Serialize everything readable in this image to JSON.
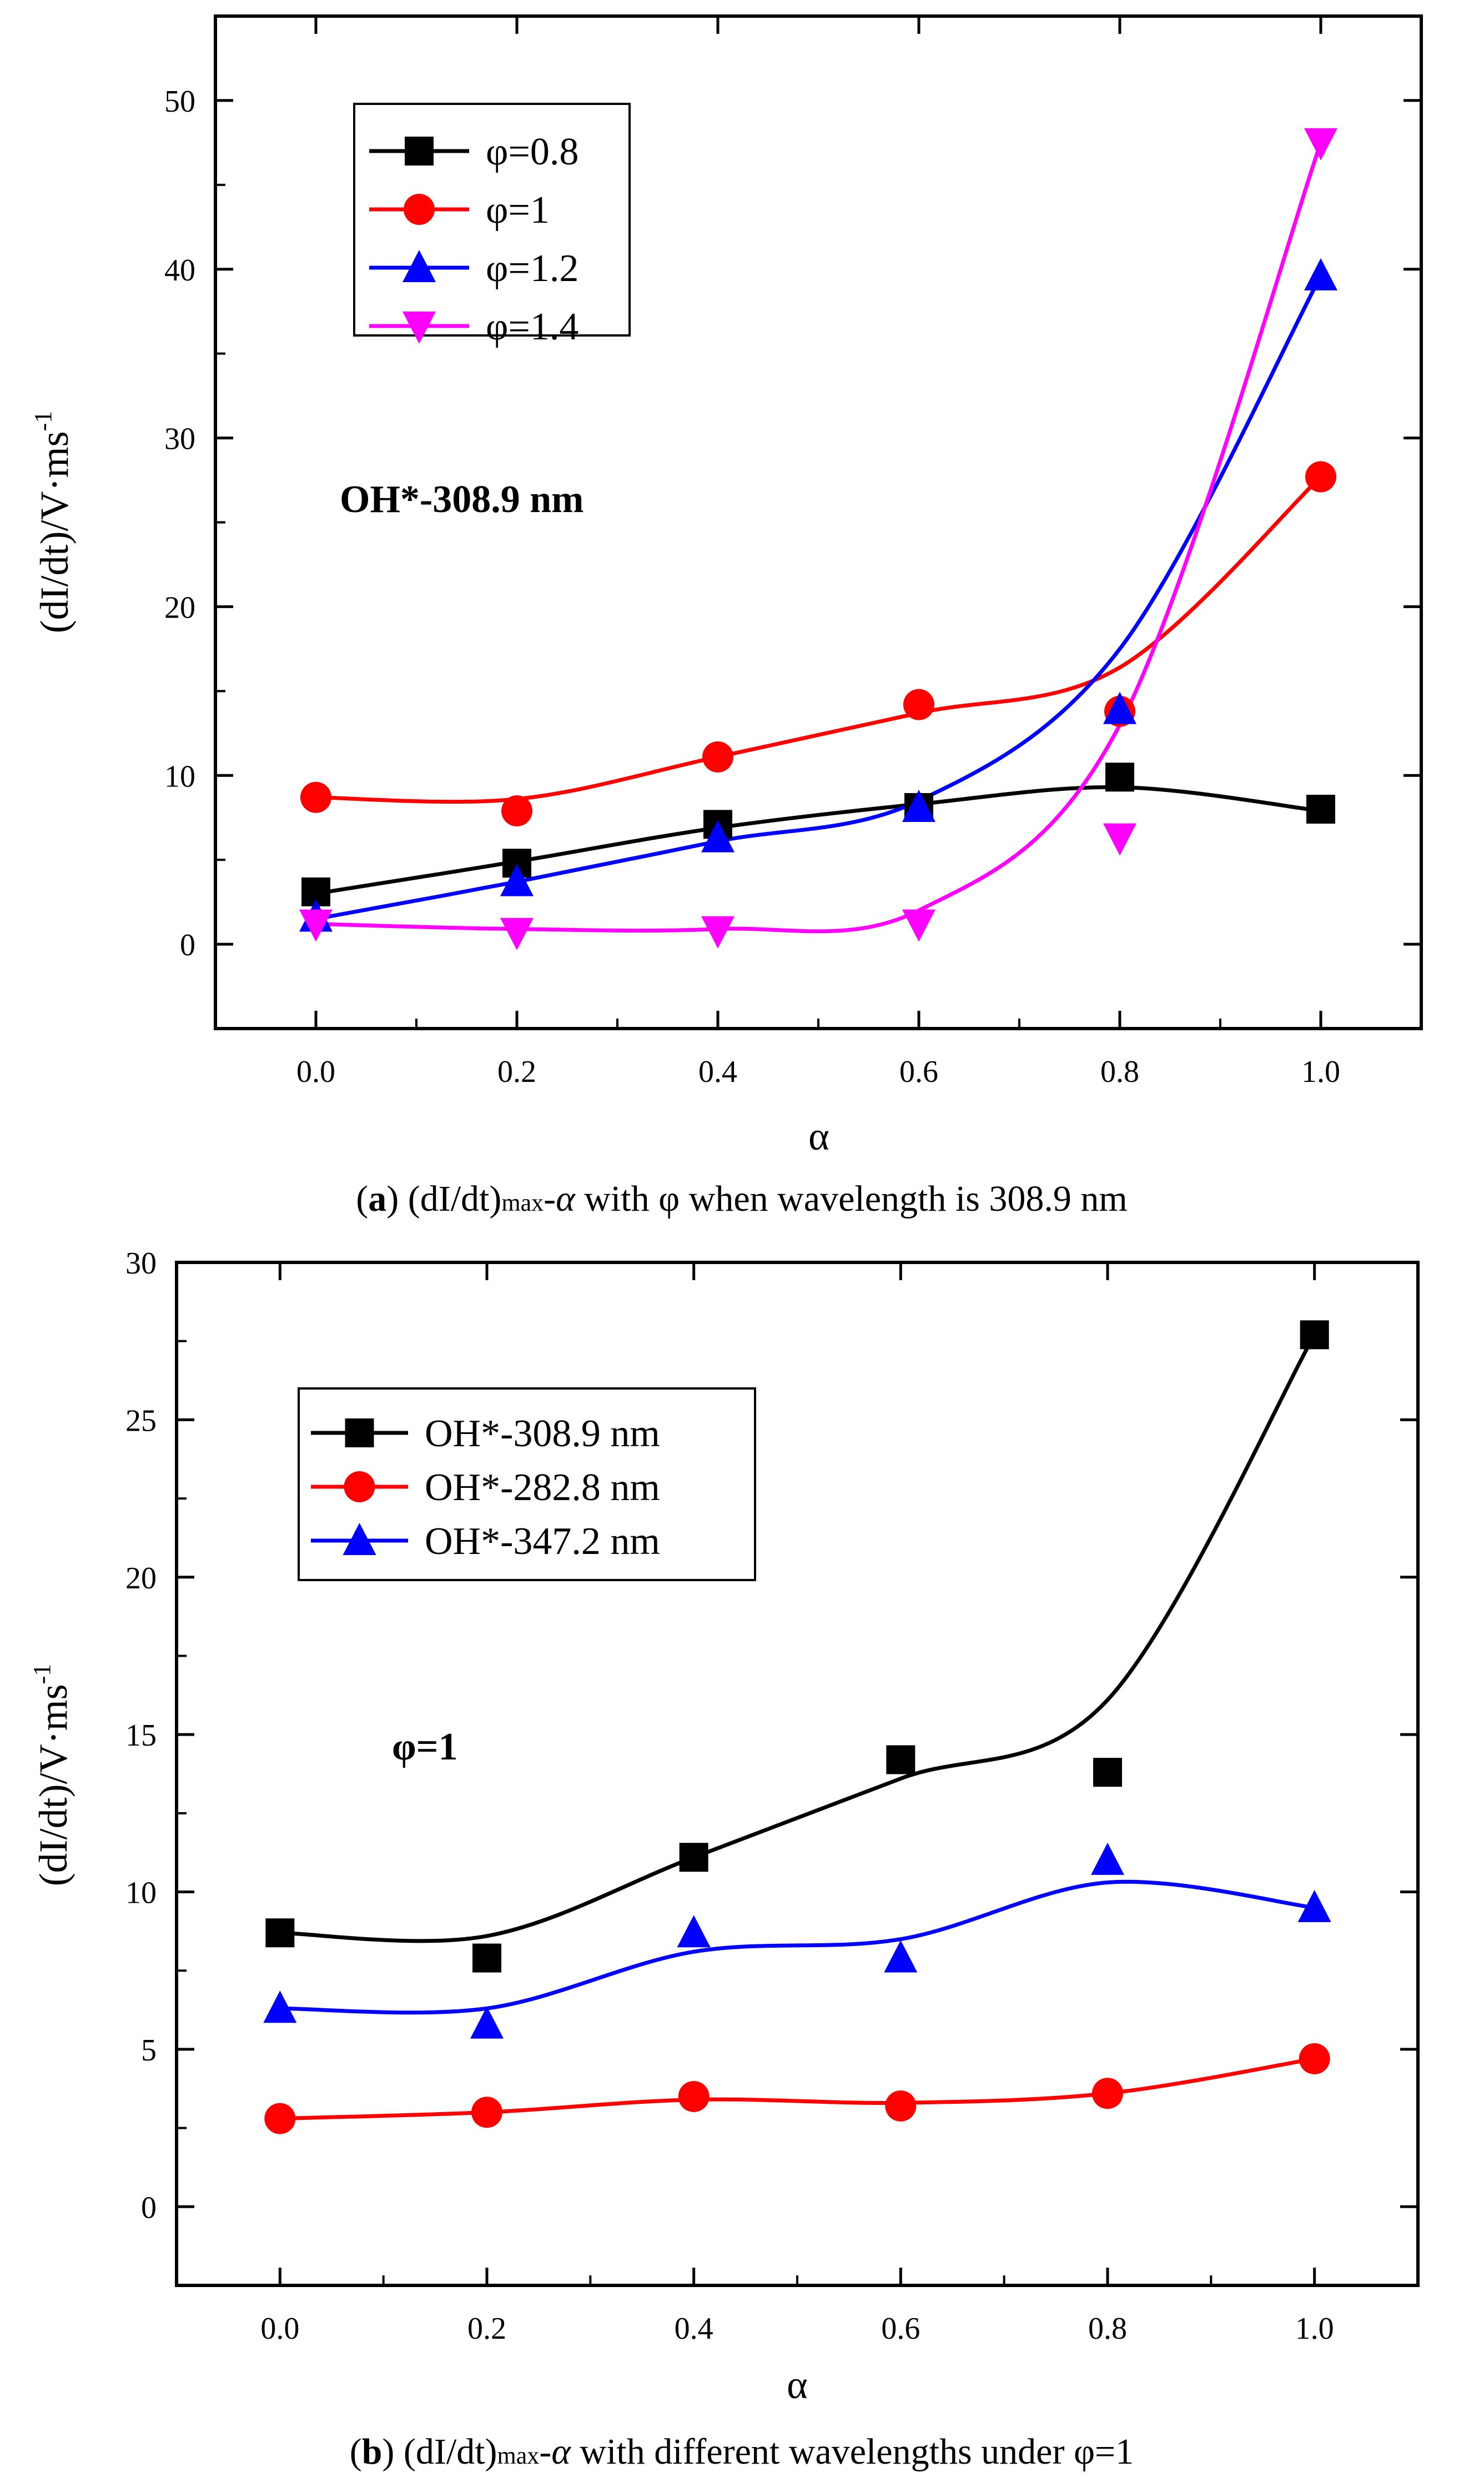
{
  "chart_data": [
    {
      "type": "line",
      "subtype": "scatter with smoothed fit curves",
      "xlabel": "α",
      "ylabel": "(dI/dt)/V·ms⁻¹",
      "ylabel_main": "(dI/dt)/V·ms",
      "ylabel_sup": "-1",
      "xlim": [
        -0.1,
        1.1
      ],
      "ylim": [
        -5,
        55
      ],
      "xticks": [
        0.0,
        0.2,
        0.4,
        0.6,
        0.8,
        1.0
      ],
      "xtick_labels": [
        "0.0",
        "0.2",
        "0.4",
        "0.6",
        "0.8",
        "1.0"
      ],
      "yticks": [
        0,
        10,
        20,
        30,
        40,
        50
      ],
      "ytick_labels": [
        "0",
        "10",
        "20",
        "30",
        "40",
        "50"
      ],
      "annotation": "OH*-308.9 nm",
      "caption": {
        "label": "a",
        "text_before": " (dI/dt)",
        "sub": "max",
        "dash": "-",
        "alpha": "α",
        "text_after": " with φ when wavelength is 308.9 nm"
      },
      "legend_position": "top-left",
      "x": [
        0.0,
        0.2,
        0.4,
        0.6,
        0.8,
        1.0
      ],
      "series": [
        {
          "name": "φ=0.8",
          "color": "#000000",
          "marker": "square",
          "values": [
            3.1,
            4.8,
            7.1,
            8.1,
            9.9,
            8.0
          ],
          "fit": [
            3.0,
            4.9,
            6.9,
            8.3,
            9.3,
            7.9
          ]
        },
        {
          "name": "φ=1",
          "color": "#ff0000",
          "marker": "circle",
          "values": [
            8.7,
            7.9,
            11.1,
            14.2,
            13.8,
            27.7
          ],
          "fit": [
            8.7,
            8.6,
            11.1,
            13.7,
            16.4,
            27.7
          ]
        },
        {
          "name": "φ=1.2",
          "color": "#0000ff",
          "marker": "triangle-up",
          "values": [
            1.6,
            3.7,
            6.3,
            8.1,
            13.9,
            39.6
          ],
          "fit": [
            1.5,
            3.7,
            6.1,
            8.5,
            17.5,
            39.6
          ]
        },
        {
          "name": "φ=1.4",
          "color": "#ff00ff",
          "marker": "triangle-down",
          "values": [
            1.2,
            0.7,
            0.8,
            1.2,
            6.3,
            47.5
          ],
          "fit": [
            1.2,
            0.9,
            0.9,
            2.0,
            13.0,
            47.5
          ]
        }
      ]
    },
    {
      "type": "line",
      "subtype": "scatter with smoothed fit curves",
      "xlabel": "α",
      "ylabel": "(dI/dt)/V·ms⁻¹",
      "ylabel_main": "(dI/dt)/V·ms",
      "ylabel_sup": "-1",
      "xlim": [
        -0.1,
        1.1
      ],
      "ylim": [
        -2.5,
        30
      ],
      "xticks": [
        0.0,
        0.2,
        0.4,
        0.6,
        0.8,
        1.0
      ],
      "xtick_labels": [
        "0.0",
        "0.2",
        "0.4",
        "0.6",
        "0.8",
        "1.0"
      ],
      "yticks": [
        0,
        5,
        10,
        15,
        20,
        25,
        30
      ],
      "ytick_labels": [
        "0",
        "5",
        "10",
        "15",
        "20",
        "25",
        "30"
      ],
      "annotation": "φ=1",
      "caption": {
        "label": "b",
        "text_before": " (dI/dt)",
        "sub": "max",
        "dash": "-",
        "alpha": "α",
        "text_after": " with different wavelengths under φ=1"
      },
      "legend_position": "top-left",
      "x": [
        0.0,
        0.2,
        0.4,
        0.6,
        0.8,
        1.0
      ],
      "series": [
        {
          "name": "OH*-308.9 nm",
          "color": "#000000",
          "marker": "square",
          "values": [
            8.7,
            7.9,
            11.1,
            14.2,
            13.8,
            27.7
          ],
          "fit": [
            8.7,
            8.6,
            11.1,
            13.6,
            16.1,
            27.7
          ]
        },
        {
          "name": "OH*-282.8 nm",
          "color": "#ff0000",
          "marker": "circle",
          "values": [
            2.8,
            3.0,
            3.5,
            3.2,
            3.6,
            4.7
          ],
          "fit": [
            2.8,
            3.0,
            3.4,
            3.3,
            3.6,
            4.7
          ]
        },
        {
          "name": "OH*-347.2 nm",
          "color": "#0000ff",
          "marker": "triangle-up",
          "values": [
            6.3,
            5.8,
            8.7,
            7.9,
            11.0,
            9.5
          ],
          "fit": [
            6.3,
            6.3,
            8.1,
            8.5,
            10.3,
            9.5
          ]
        }
      ]
    }
  ]
}
